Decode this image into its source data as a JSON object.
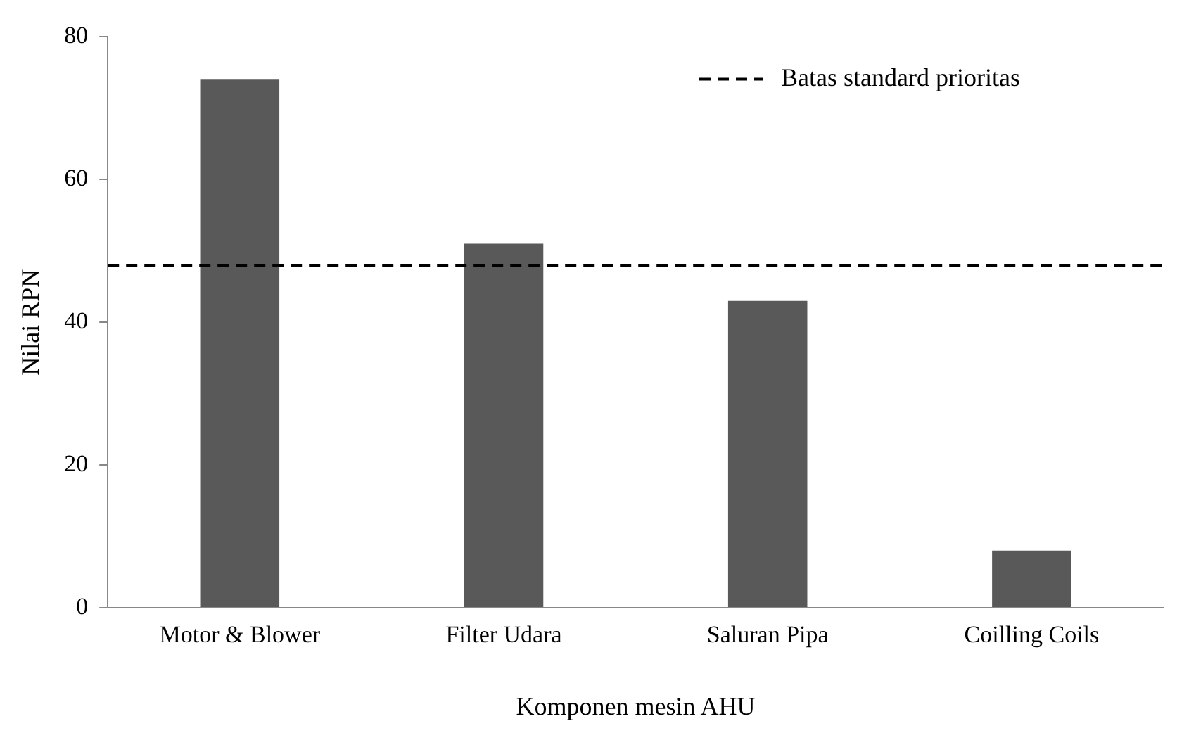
{
  "chart_data": {
    "type": "bar",
    "xlabel": "Komponen mesin AHU",
    "ylabel": "Nilai RPN",
    "categories": [
      "Motor & Blower",
      "Filter Udara",
      "Saluran Pipa",
      "Coilling Coils"
    ],
    "values": [
      74,
      51,
      43,
      8
    ],
    "color": "#595959",
    "ylim": [
      0,
      80
    ],
    "yticks": [
      0,
      20,
      40,
      60,
      80
    ],
    "grid": false,
    "legend": "top right",
    "ref_lines": [
      {
        "axis": "y",
        "value": 48,
        "label": "Batas standard prioritas",
        "color": "#000000",
        "line_style": "dashed"
      }
    ]
  }
}
